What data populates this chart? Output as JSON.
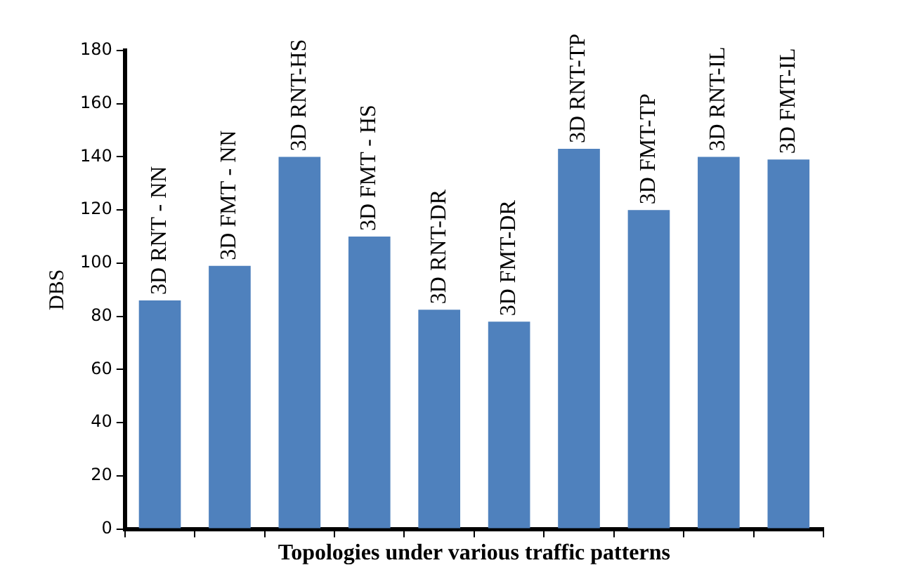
{
  "chart_data": {
    "type": "bar",
    "xlabel": "Topologies under various traffic patterns",
    "ylabel": "DBS",
    "categories": [
      "3D RNT - NN",
      "3D FMT - NN",
      "3D RNT-HS",
      "3D FMT - HS",
      "3D RNT-DR",
      "3D FMT-DR",
      "3D RNT-TP",
      "3D FMT-TP",
      "3D RNT-IL",
      "3D FMT-IL"
    ],
    "values": [
      86,
      99,
      140,
      110,
      82.5,
      78,
      143,
      120,
      140,
      139
    ],
    "color": "#4f81bd",
    "ylim": [
      0,
      180
    ],
    "yticks": [
      0,
      20,
      40,
      60,
      80,
      100,
      120,
      140,
      160,
      180
    ],
    "grid": false,
    "legend": false
  }
}
